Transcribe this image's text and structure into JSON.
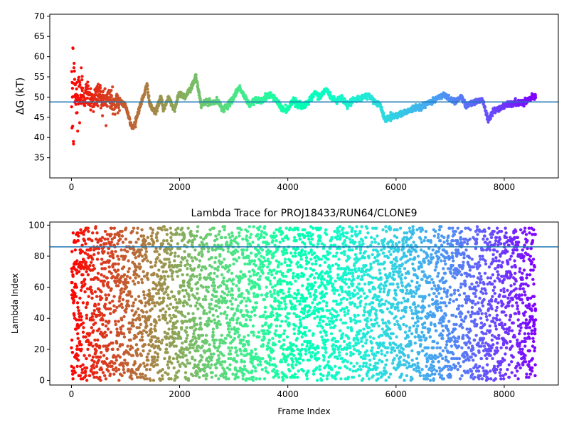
{
  "chart_data": [
    {
      "type": "scatter",
      "title": "",
      "xlabel": "",
      "ylabel": "ΔG (kT)",
      "xlim": [
        -400,
        9000
      ],
      "ylim": [
        30,
        70.5
      ],
      "xticks": [
        0,
        2000,
        4000,
        6000,
        8000
      ],
      "yticks": [
        35,
        40,
        45,
        50,
        55,
        60,
        65,
        70
      ],
      "hline": {
        "y": 48.8,
        "color": "#1f77b4"
      },
      "x_range": [
        0,
        8580
      ],
      "colormap": "rainbow (reversed: red at frame 0, violet at last frame)",
      "grid": false,
      "series_profile": {
        "x": [
          0,
          20,
          60,
          100,
          150,
          200,
          300,
          400,
          500,
          600,
          700,
          800,
          900,
          1000,
          1100,
          1150,
          1250,
          1350,
          1400,
          1450,
          1550,
          1650,
          1700,
          1800,
          1900,
          2000,
          2100,
          2200,
          2300,
          2400,
          2500,
          2600,
          2700,
          2800,
          2900,
          3000,
          3100,
          3200,
          3300,
          3400,
          3500,
          3600,
          3700,
          3800,
          3900,
          4000,
          4100,
          4200,
          4300,
          4400,
          4500,
          4600,
          4700,
          4800,
          4900,
          5000,
          5100,
          5200,
          5300,
          5400,
          5500,
          5600,
          5700,
          5800,
          5900,
          6000,
          6200,
          6400,
          6600,
          6800,
          6900,
          7000,
          7100,
          7200,
          7300,
          7400,
          7500,
          7600,
          7700,
          7800,
          8000,
          8200,
          8400,
          8580
        ],
        "y": [
          55,
          50,
          52,
          48,
          52,
          50,
          51,
          49,
          51,
          49,
          50,
          48,
          49,
          48,
          43,
          42.5,
          47,
          51,
          53,
          48,
          46,
          50,
          47,
          50,
          47,
          51,
          50,
          52,
          55,
          48,
          49,
          48.5,
          49,
          47,
          48,
          50,
          52.5,
          50,
          48,
          49.5,
          49,
          50,
          50.5,
          49,
          47,
          47,
          49.5,
          48,
          48,
          49,
          51,
          50,
          52,
          50,
          49,
          50,
          48,
          49,
          49.5,
          50,
          50.5,
          49,
          48,
          44.5,
          45,
          45.5,
          46.5,
          47.5,
          48.5,
          50,
          50.5,
          49.5,
          49,
          50,
          48,
          48.5,
          49,
          49.5,
          44.5,
          46.5,
          48,
          48.5,
          49,
          50.5
        ]
      }
    },
    {
      "type": "scatter",
      "title": "Lambda Trace for PROJ18433/RUN64/CLONE9",
      "xlabel": "Frame Index",
      "ylabel": "Lambda Index",
      "xlim": [
        -400,
        9000
      ],
      "ylim": [
        -3,
        102
      ],
      "xticks": [
        0,
        2000,
        4000,
        6000,
        8000
      ],
      "yticks": [
        0,
        20,
        40,
        60,
        80,
        100
      ],
      "hline": {
        "y": 86,
        "color": "#1f77b4"
      },
      "x_range": [
        0,
        8580
      ],
      "lambda_range": [
        0,
        99
      ],
      "colormap": "rainbow (reversed: red at frame 0, violet at last frame)",
      "grid": false
    }
  ]
}
